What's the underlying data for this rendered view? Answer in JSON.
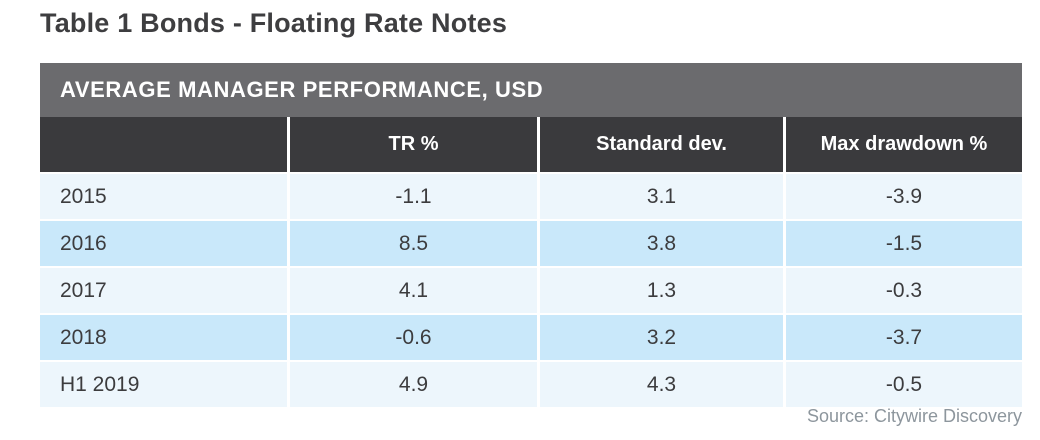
{
  "title": "Table 1 Bonds - Floating Rate Notes",
  "table": {
    "header_band": "AVERAGE MANAGER PERFORMANCE, USD",
    "columns": [
      "",
      "TR %",
      "Standard dev.",
      "Max drawdown %"
    ],
    "rows": [
      {
        "label": "2015",
        "values": [
          "-1.1",
          "3.1",
          "-3.9"
        ]
      },
      {
        "label": "2016",
        "values": [
          "8.5",
          "3.8",
          "-1.5"
        ]
      },
      {
        "label": "2017",
        "values": [
          "4.1",
          "1.3",
          "-0.3"
        ]
      },
      {
        "label": "2018",
        "values": [
          "-0.6",
          "3.2",
          "-3.7"
        ]
      },
      {
        "label": "H1 2019",
        "values": [
          "4.9",
          "4.3",
          "-0.5"
        ]
      }
    ]
  },
  "source": "Source: Citywire Discovery",
  "colors": {
    "title_text": "#3e3e40",
    "band_bg": "#6b6b6e",
    "header_bg": "#3a3a3d",
    "header_text": "#ffffff",
    "row_pale": "#edf6fc",
    "row_blue": "#c9e8fa",
    "body_text": "#3c3c3e",
    "source_text": "#8d969d"
  },
  "chart_data": {
    "type": "table",
    "title": "AVERAGE MANAGER PERFORMANCE, USD",
    "subtitle": "Table 1 Bonds - Floating Rate Notes",
    "columns": [
      "",
      "TR %",
      "Standard dev.",
      "Max drawdown %"
    ],
    "rows": [
      [
        "2015",
        -1.1,
        3.1,
        -3.9
      ],
      [
        "2016",
        8.5,
        3.8,
        -1.5
      ],
      [
        "2017",
        4.1,
        1.3,
        -0.3
      ],
      [
        "2018",
        -0.6,
        3.2,
        -3.7
      ],
      [
        "H1 2019",
        4.9,
        4.3,
        -0.5
      ]
    ],
    "source": "Source: Citywire Discovery",
    "layout": "alternating pale/blue rows, dark column-header row, gray title band"
  }
}
